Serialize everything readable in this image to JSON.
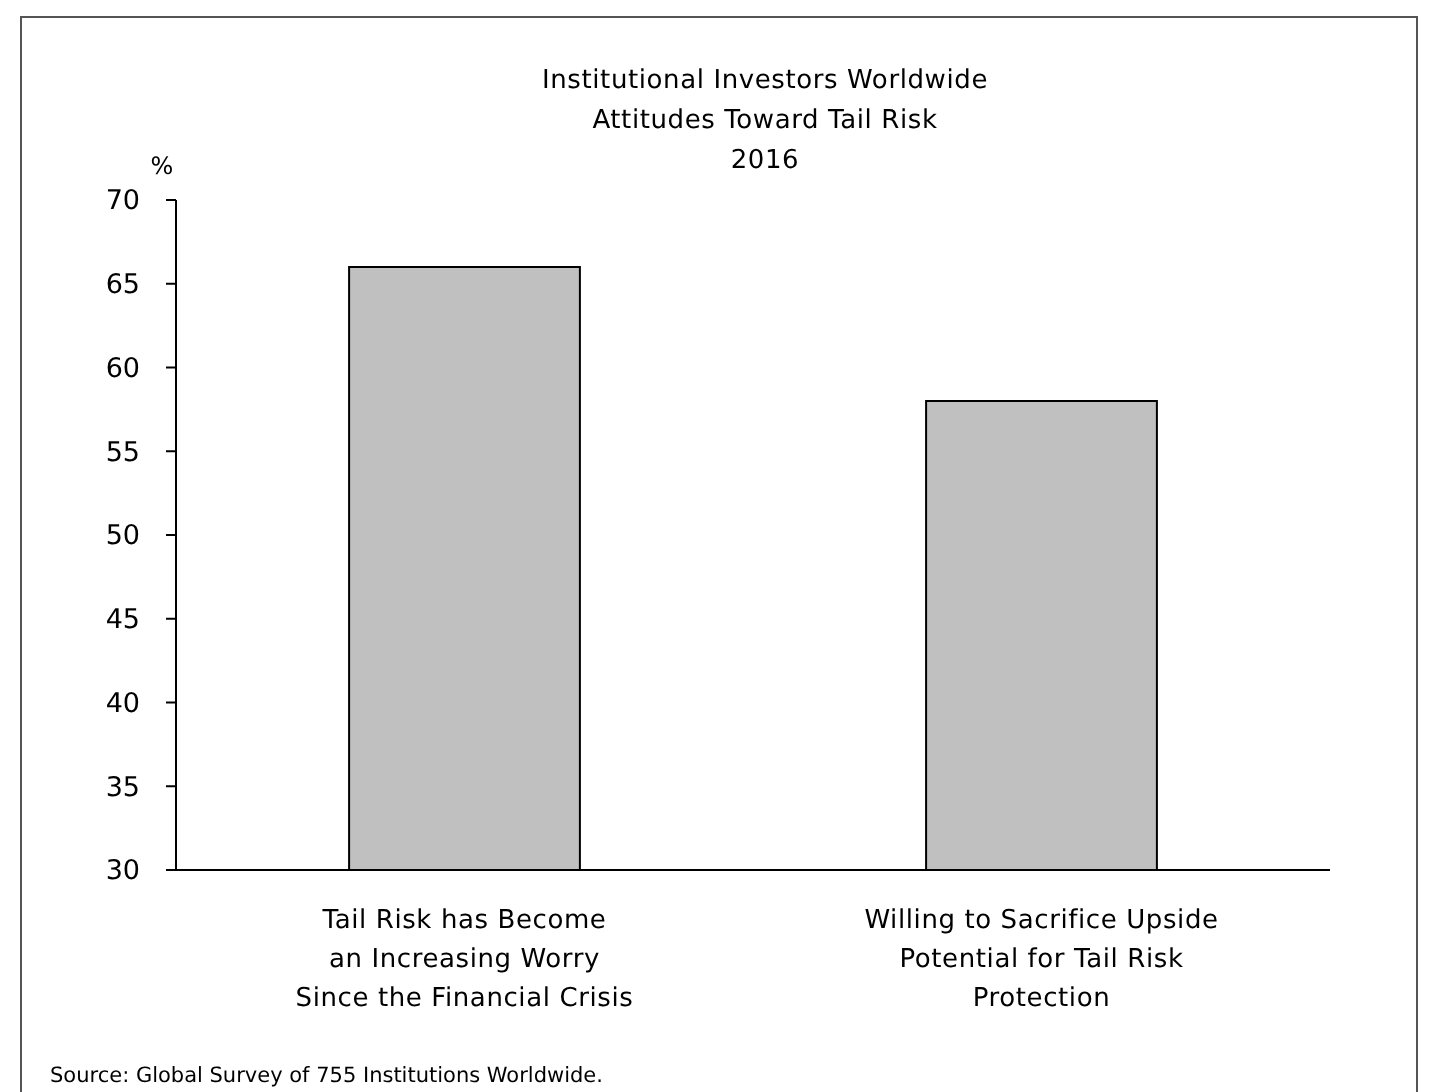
{
  "chart_data": {
    "type": "bar",
    "title": "Institutional Investors Worldwide\nAttitudes Toward Tail Risk\n2016",
    "ylabel": "%",
    "categories": [
      "Tail Risk has Become\nan Increasing Worry\nSince the Financial Crisis",
      "Willing to Sacrifice Upside\nPotential for Tail Risk\nProtection"
    ],
    "values": [
      66,
      58
    ],
    "color": "#c0c0c0",
    "ylim": [
      30,
      70
    ],
    "yticks": [
      30,
      35,
      40,
      45,
      50,
      55,
      60,
      65,
      70
    ],
    "annotations": [
      "Source: Global Survey of 755 Institutions Worldwide."
    ]
  }
}
